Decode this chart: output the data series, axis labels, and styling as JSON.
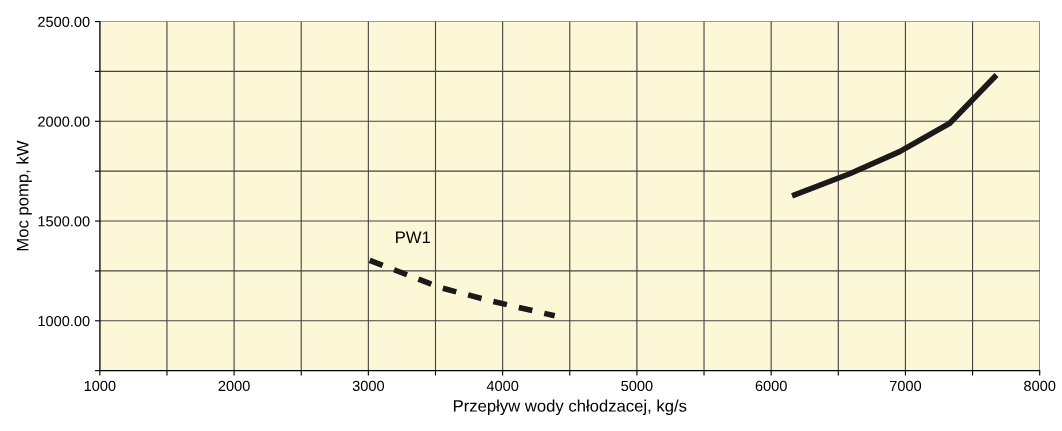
{
  "chart_data": {
    "type": "line",
    "xlabel": "Przepływ wody chłodzacej, kg/s",
    "ylabel": "Moc pomp, kW",
    "xlim": [
      1000,
      8000
    ],
    "xticks": [
      1000,
      {
        "value": 1500,
        "label": null
      },
      2000,
      {
        "value": 2500,
        "label": null
      },
      3000,
      {
        "value": 3500,
        "label": null
      },
      4000,
      {
        "value": 4500,
        "label": null
      },
      5000,
      {
        "value": 5500,
        "label": null
      },
      6000,
      {
        "value": 6500,
        "label": null
      },
      7000,
      {
        "value": 7500,
        "label": null
      },
      8000
    ],
    "ylim": [
      750,
      2500
    ],
    "yticks": [
      {
        "value": 750,
        "label": null
      },
      {
        "value": 1000,
        "label": "1000.00"
      },
      {
        "value": 1250,
        "label": null
      },
      {
        "value": 1500,
        "label": "1500.00"
      },
      {
        "value": 1750,
        "label": null
      },
      {
        "value": 2000,
        "label": "2000.00"
      },
      {
        "value": 2250,
        "label": null
      },
      {
        "value": 2500,
        "label": "2500.00"
      }
    ],
    "grid": true,
    "legend": false,
    "marker": "none",
    "series": [
      {
        "name": "PW1",
        "color": "#1a1a1a",
        "line_style": "dashed",
        "x": [
          3010,
          3532,
          3904,
          4388
        ],
        "values": [
          1303,
          1167,
          1101,
          1025
        ]
      },
      {
        "color": "#1a1a1a",
        "line_style": "solid",
        "x": [
          6175,
          6585,
          6957,
          7330,
          7664
        ],
        "values": [
          1631,
          1737,
          1848,
          1990,
          2222
        ]
      }
    ]
  }
}
